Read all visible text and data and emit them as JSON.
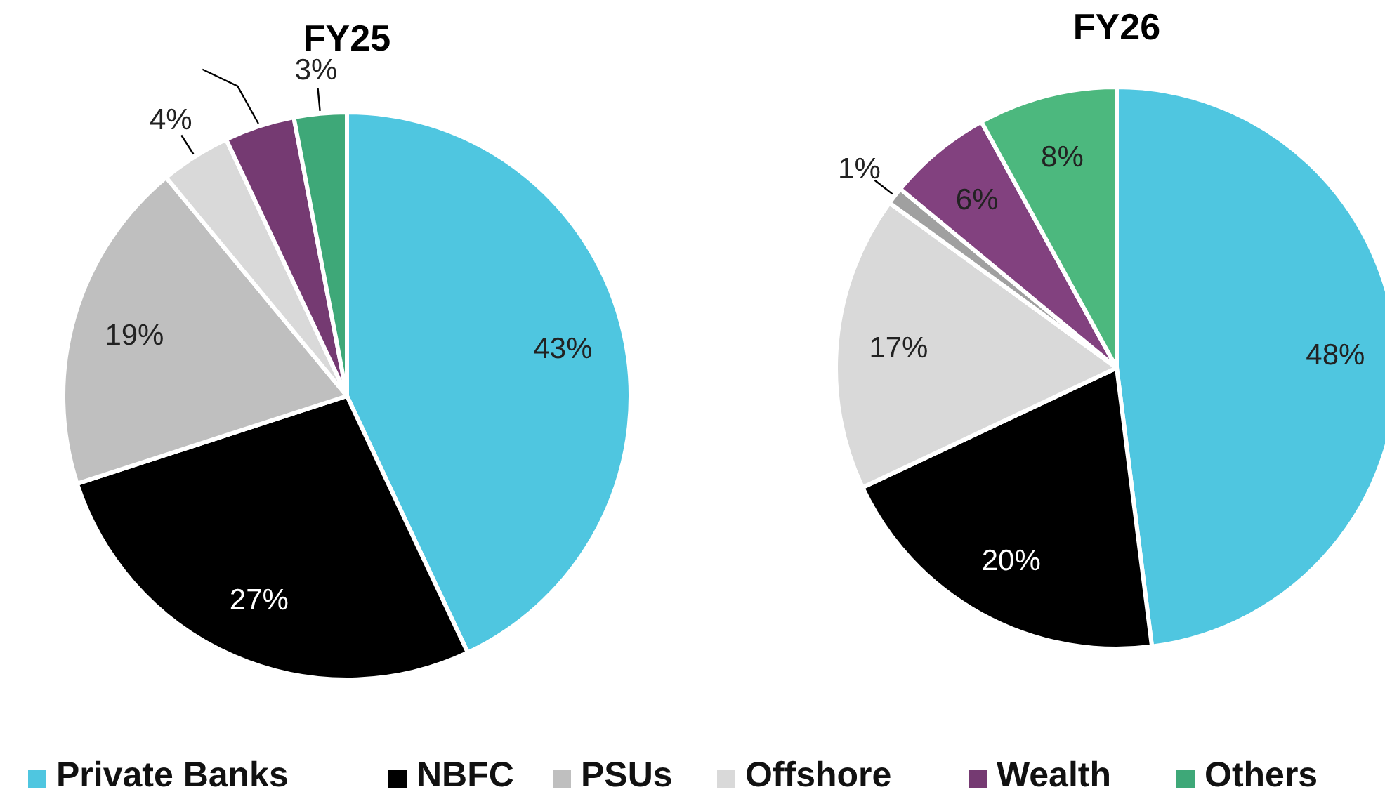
{
  "chart_data": [
    {
      "type": "pie",
      "title": "FY25",
      "categories": [
        "Private Banks",
        "NBFC",
        "PSUs",
        "Offshore",
        "Wealth",
        "Others"
      ],
      "values": [
        43,
        27,
        19,
        4,
        4,
        3
      ],
      "colors": [
        "#4fc6e0",
        "#000000",
        "#bfbfbf",
        "#d9d9d9",
        "#753a72",
        "#3ea878"
      ],
      "value_labels": [
        "43%",
        "27%",
        "19%",
        "4%",
        null,
        "3%"
      ],
      "legend": "bottom"
    },
    {
      "type": "pie",
      "title": "FY26",
      "categories": [
        null,
        null,
        null,
        null,
        null,
        null
      ],
      "values": [
        48,
        20,
        17,
        1,
        6,
        8
      ],
      "colors": [
        "#4fc6e0",
        "#000000",
        "#d9d9d9",
        "#a0a0a0",
        "#82417f",
        "#4cb87e"
      ],
      "value_labels": [
        "48%",
        "20%",
        "17%",
        "1%",
        "6%",
        "8%"
      ]
    }
  ]
}
